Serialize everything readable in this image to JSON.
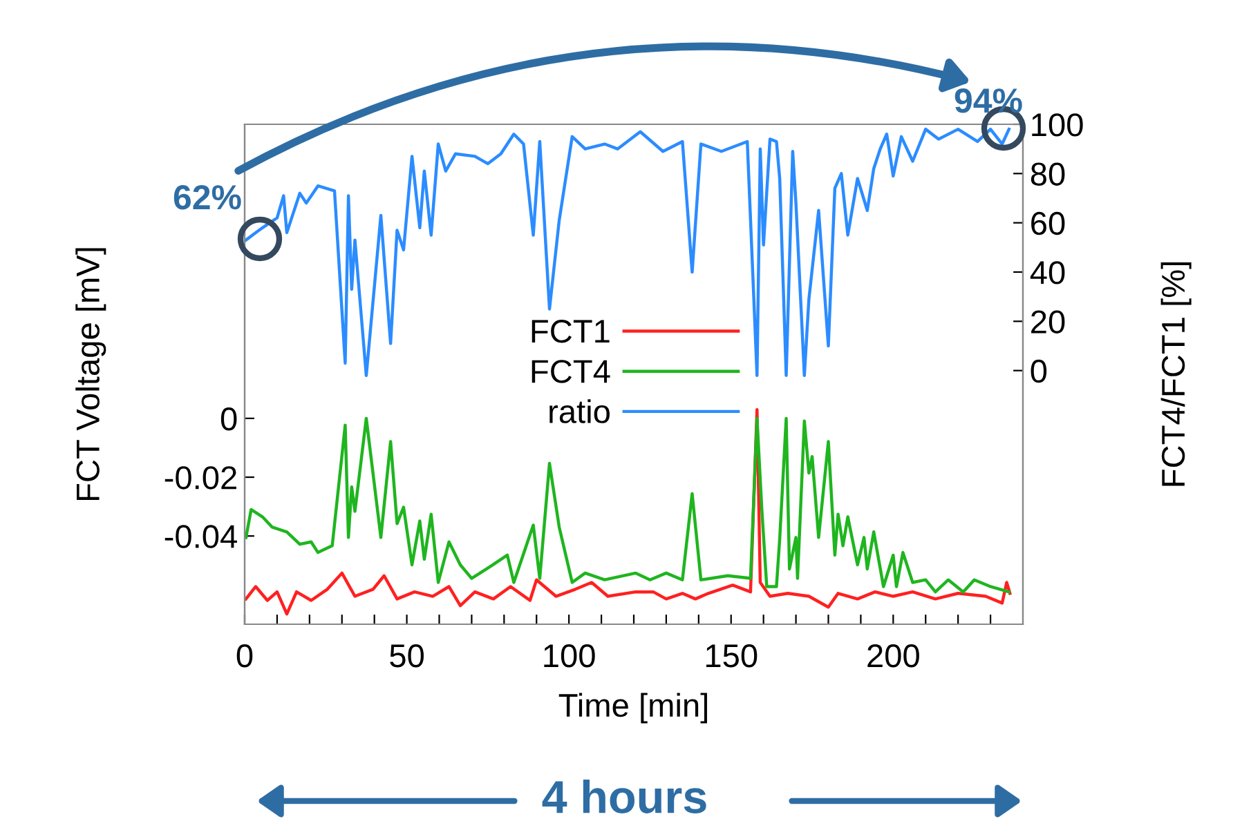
{
  "chart_data": {
    "type": "line",
    "xlabel": "Time [min]",
    "ylabel": "FCT Voltage [mV]",
    "y2label": "FCT4/FCT1 [%]",
    "xlim": [
      0,
      240
    ],
    "xticks": [
      0,
      {
        "value": 10,
        "label": null
      },
      {
        "value": 20,
        "label": null
      },
      {
        "value": 30,
        "label": null
      },
      {
        "value": 40,
        "label": null
      },
      50,
      {
        "value": 60,
        "label": null
      },
      {
        "value": 70,
        "label": null
      },
      {
        "value": 80,
        "label": null
      },
      {
        "value": 90,
        "label": null
      },
      100,
      {
        "value": 110,
        "label": null
      },
      {
        "value": 120,
        "label": null
      },
      {
        "value": 130,
        "label": null
      },
      {
        "value": 140,
        "label": null
      },
      150,
      {
        "value": 160,
        "label": null
      },
      {
        "value": 170,
        "label": null
      },
      {
        "value": 180,
        "label": null
      },
      {
        "value": 190,
        "label": null
      },
      200,
      {
        "value": 210,
        "label": null
      },
      {
        "value": 220,
        "label": null
      },
      {
        "value": 230,
        "label": null
      }
    ],
    "ylim": [
      -0.07,
      0.1
    ],
    "yticks": [
      {
        "value": -0.04,
        "label": "-0.04"
      },
      {
        "value": -0.02,
        "label": "-0.02"
      },
      0
    ],
    "y2lim": [
      -103,
      100
    ],
    "y2ticks": [
      0,
      20,
      40,
      60,
      80,
      100
    ],
    "legend": "center",
    "grid": false,
    "annotations": [
      "62%",
      "94%",
      "4 hours"
    ],
    "series": [
      {
        "name": "FCT1",
        "color": "#ff2020",
        "x": [
          0.4,
          3.4,
          7,
          10,
          13,
          16,
          20.5,
          25.5,
          30,
          34,
          39.6,
          43,
          47,
          52.4,
          58,
          63,
          66.5,
          71,
          76.7,
          82,
          88,
          90,
          96,
          102,
          107,
          112,
          120.6,
          126,
          130,
          135,
          139,
          143,
          150.5,
          156,
          158,
          159,
          162,
          167.5,
          174,
          180,
          183,
          189,
          194.4,
          200,
          206,
          213,
          220,
          228.5,
          233.6,
          235,
          236
        ],
        "values": [
          -0.0614,
          -0.0572,
          -0.0619,
          -0.059,
          -0.0665,
          -0.059,
          -0.0619,
          -0.0581,
          -0.0526,
          -0.0605,
          -0.0581,
          -0.0535,
          -0.0614,
          -0.059,
          -0.0605,
          -0.0572,
          -0.0637,
          -0.059,
          -0.0614,
          -0.0572,
          -0.0619,
          -0.0549,
          -0.0605,
          -0.0581,
          -0.0558,
          -0.0605,
          -0.059,
          -0.059,
          -0.0614,
          -0.0595,
          -0.0614,
          -0.0595,
          -0.0567,
          -0.059,
          0.003,
          -0.0558,
          -0.0605,
          -0.0595,
          -0.0605,
          -0.0642,
          -0.0595,
          -0.0614,
          -0.059,
          -0.0605,
          -0.059,
          -0.0614,
          -0.0595,
          -0.0605,
          -0.0628,
          -0.0558,
          -0.0595
        ]
      },
      {
        "name": "FCT4",
        "color": "#1fb51f",
        "x": [
          0.4,
          2,
          5.5,
          8.5,
          13,
          17,
          20.5,
          22.6,
          27,
          31,
          32,
          33,
          34,
          37.5,
          42,
          45,
          47,
          49,
          51.6,
          54,
          55.4,
          57.5,
          59.7,
          63,
          66.5,
          70,
          76,
          81,
          83,
          89,
          91,
          94,
          97,
          101,
          105,
          111,
          120.6,
          125,
          130,
          135,
          138,
          140.7,
          149,
          156,
          158,
          159.5,
          161,
          164,
          165,
          167,
          168,
          170,
          170.5,
          172.6,
          174,
          175,
          177,
          180,
          182,
          183,
          184.5,
          186,
          189,
          191,
          192,
          194,
          197,
          200,
          201,
          203,
          206,
          210,
          213,
          217,
          221.6,
          225,
          230,
          235.7
        ],
        "values": [
          -0.0405,
          -0.031,
          -0.0335,
          -0.037,
          -0.0386,
          -0.0428,
          -0.042,
          -0.0456,
          -0.0433,
          -0.0023,
          -0.0405,
          -0.0233,
          -0.0316,
          0,
          -0.0405,
          -0.0079,
          -0.0358,
          -0.0302,
          -0.0498,
          -0.0349,
          -0.0479,
          -0.0326,
          -0.0558,
          -0.042,
          -0.0498,
          -0.0544,
          -0.0502,
          -0.0465,
          -0.0558,
          -0.0363,
          -0.0544,
          -0.0153,
          -0.037,
          -0.0558,
          -0.0526,
          -0.0549,
          -0.0526,
          -0.0549,
          -0.0526,
          -0.0549,
          -0.0256,
          -0.0549,
          -0.0535,
          -0.0544,
          0,
          -0.0312,
          -0.0572,
          -0.0572,
          -0.0409,
          0,
          -0.0512,
          -0.0405,
          -0.0544,
          -0.0009,
          -0.0186,
          -0.013,
          -0.0405,
          -0.0079,
          -0.0465,
          -0.0326,
          -0.0433,
          -0.0335,
          -0.0498,
          -0.0405,
          -0.0512,
          -0.0386,
          -0.0572,
          -0.0465,
          -0.0572,
          -0.0456,
          -0.0558,
          -0.0549,
          -0.059,
          -0.0549,
          -0.059,
          -0.0549,
          -0.0572,
          -0.059
        ]
      },
      {
        "name": "ratio",
        "color": "#2b8cff",
        "axis": "y2",
        "x": [
          0.4,
          3.4,
          5.5,
          10,
          12,
          13,
          17,
          19,
          22.6,
          27.7,
          31,
          32,
          33,
          34,
          37.5,
          42,
          45,
          47,
          49,
          51.6,
          54,
          55.4,
          57.5,
          59.7,
          62,
          65,
          71,
          75,
          79,
          83,
          86,
          89,
          91,
          94,
          97,
          101,
          105,
          111,
          115,
          122,
          129,
          135,
          138,
          140.7,
          147,
          155,
          158,
          159,
          160,
          162,
          164,
          165,
          167,
          169,
          170,
          172.6,
          174,
          177,
          180,
          182,
          184,
          186,
          189,
          192,
          194,
          196,
          198,
          200,
          202.5,
          206,
          210,
          214,
          220,
          226,
          230,
          233.6,
          235.7
        ],
        "values": [
          53,
          56,
          58,
          62,
          71,
          56,
          72,
          68,
          75,
          73,
          3,
          71,
          33,
          53,
          -2,
          63,
          11,
          57,
          49,
          87,
          58,
          81,
          55,
          92,
          81,
          88,
          87,
          84,
          88,
          96,
          92,
          55,
          93,
          25,
          61,
          95,
          90,
          92,
          90,
          97,
          89,
          93,
          40,
          92,
          89,
          93,
          -2,
          90,
          51,
          94,
          93,
          78,
          -2,
          89,
          68,
          -2,
          29,
          65,
          10,
          74,
          80,
          55,
          78,
          65,
          82,
          90,
          96,
          79,
          95,
          85,
          98,
          94,
          98,
          93,
          98,
          92,
          98
        ]
      }
    ]
  }
}
